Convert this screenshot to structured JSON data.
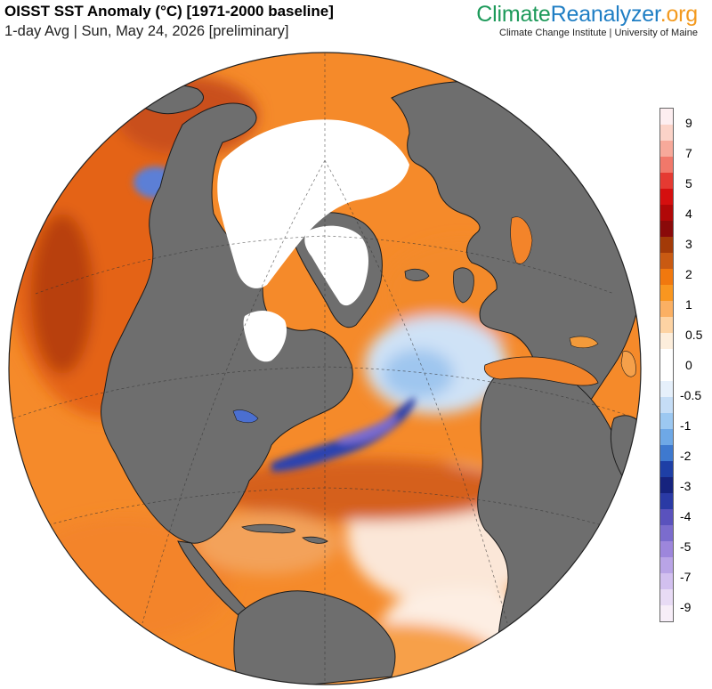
{
  "header": {
    "title": "OISST SST Anomaly (°C) [1971-2000 baseline]",
    "subtitle": "1-day Avg | Sun, May 24, 2026 [preliminary]"
  },
  "brand": {
    "part1": "Climate",
    "part2": "Reanalyzer",
    "part3": ".org",
    "tagline": "Climate Change Institute | University of Maine",
    "colors": {
      "climate": "#1d9a5a",
      "reanalyzer": "#1f7ec4",
      "org": "#f39a1f"
    }
  },
  "map": {
    "projection": "orthographic",
    "center": "North Atlantic",
    "land_color": "#6e6e6e",
    "sea_ice_color": "#ffffff",
    "border_color": "#222222"
  },
  "colorbar": {
    "orientation": "vertical",
    "placement": "right",
    "labels": [
      "9",
      "7",
      "5",
      "4",
      "3",
      "2",
      "1",
      "0.5",
      "0",
      "-0.5",
      "-1",
      "-2",
      "-3",
      "-4",
      "-5",
      "-7",
      "-9"
    ],
    "colors_top_to_bottom": [
      "#fdeef0",
      "#fbd3c8",
      "#f7a99a",
      "#f1786a",
      "#e53a32",
      "#d50f0f",
      "#b10808",
      "#8a0a0a",
      "#a33a08",
      "#c95a12",
      "#f1780e",
      "#f9961f",
      "#fbb063",
      "#fdd3a3",
      "#fdeedc",
      "#ffffff",
      "#ffffff",
      "#e6f0fb",
      "#c5ddf6",
      "#9cc8f1",
      "#6ea8e6",
      "#3e79cf",
      "#1e3fa6",
      "#16237e",
      "#2a3aa5",
      "#5a52bd",
      "#7b6ccd",
      "#9d86dc",
      "#b9a4e6",
      "#d2c0ef",
      "#e8dbf5",
      "#f7eef8"
    ]
  }
}
